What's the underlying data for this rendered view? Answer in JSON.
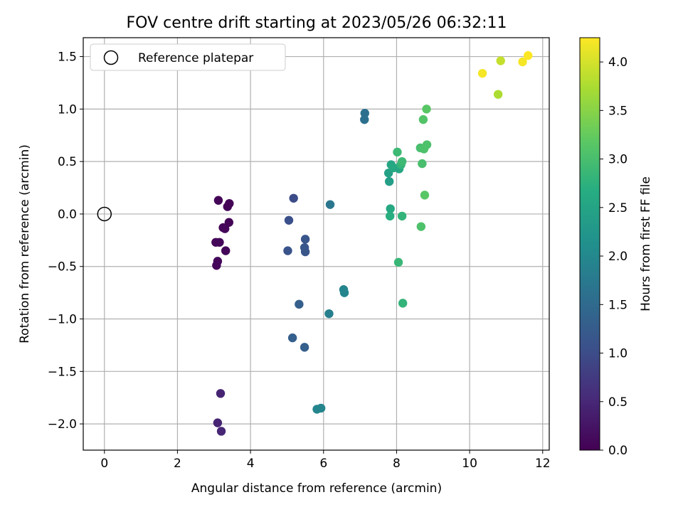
{
  "chart_data": {
    "type": "scatter",
    "title": "FOV centre drift starting at 2023/05/26 06:32:11",
    "xlabel": "Angular distance from reference (arcmin)",
    "ylabel": "Rotation from reference (arcmin)",
    "xlim": [
      -0.58,
      12.18
    ],
    "ylim": [
      -2.25,
      1.68
    ],
    "xticks": [
      0,
      2,
      4,
      6,
      8,
      10,
      12
    ],
    "yticks": [
      -2.0,
      -1.5,
      -1.0,
      -0.5,
      0.0,
      0.5,
      1.0,
      1.5
    ],
    "grid": true,
    "legend": {
      "placement": "top-left",
      "entries": [
        "Reference platepar"
      ]
    },
    "reference_point": {
      "x": 0,
      "y": 0,
      "marker": "open-circle",
      "label": "Reference platepar"
    },
    "colorbar": {
      "label": "Hours from first FF file",
      "range": [
        0.0,
        4.25
      ],
      "ticks": [
        0.0,
        0.5,
        1.0,
        1.5,
        2.0,
        2.5,
        3.0,
        3.5,
        4.0
      ],
      "colormap": "viridis"
    },
    "series": [
      {
        "points": [
          {
            "x": 3.12,
            "y": 0.13,
            "c": 0.05
          },
          {
            "x": 3.42,
            "y": 0.1,
            "c": 0.05
          },
          {
            "x": 3.37,
            "y": 0.07,
            "c": 0.05
          },
          {
            "x": 3.41,
            "y": -0.08,
            "c": 0.05
          },
          {
            "x": 3.25,
            "y": -0.13,
            "c": 0.05
          },
          {
            "x": 3.3,
            "y": -0.14,
            "c": 0.08
          },
          {
            "x": 3.15,
            "y": -0.27,
            "c": 0.08
          },
          {
            "x": 3.05,
            "y": -0.27,
            "c": 0.08
          },
          {
            "x": 3.32,
            "y": -0.35,
            "c": 0.08
          },
          {
            "x": 3.1,
            "y": -0.45,
            "c": 0.08
          },
          {
            "x": 3.07,
            "y": -0.49,
            "c": 0.08
          },
          {
            "x": 3.18,
            "y": -1.71,
            "c": 0.45
          },
          {
            "x": 3.1,
            "y": -1.99,
            "c": 0.45
          },
          {
            "x": 3.2,
            "y": -2.07,
            "c": 0.48
          },
          {
            "x": 5.18,
            "y": 0.15,
            "c": 1.0
          },
          {
            "x": 5.05,
            "y": -0.06,
            "c": 1.05
          },
          {
            "x": 5.5,
            "y": -0.24,
            "c": 1.15
          },
          {
            "x": 5.48,
            "y": -0.32,
            "c": 1.15
          },
          {
            "x": 5.02,
            "y": -0.35,
            "c": 1.1
          },
          {
            "x": 5.5,
            "y": -0.36,
            "c": 1.15
          },
          {
            "x": 5.33,
            "y": -0.86,
            "c": 1.3
          },
          {
            "x": 5.15,
            "y": -1.18,
            "c": 1.3
          },
          {
            "x": 5.48,
            "y": -1.27,
            "c": 1.3
          },
          {
            "x": 6.18,
            "y": 0.09,
            "c": 1.7
          },
          {
            "x": 6.15,
            "y": -0.95,
            "c": 1.85
          },
          {
            "x": 6.55,
            "y": -0.72,
            "c": 1.95
          },
          {
            "x": 6.57,
            "y": -0.75,
            "c": 1.95
          },
          {
            "x": 5.82,
            "y": -1.86,
            "c": 1.95
          },
          {
            "x": 5.93,
            "y": -1.85,
            "c": 1.95
          },
          {
            "x": 7.13,
            "y": 0.96,
            "c": 1.6
          },
          {
            "x": 7.12,
            "y": 0.9,
            "c": 1.6
          },
          {
            "x": 7.8,
            "y": 0.31,
            "c": 2.4
          },
          {
            "x": 7.78,
            "y": 0.39,
            "c": 2.45
          },
          {
            "x": 7.85,
            "y": 0.47,
            "c": 2.55
          },
          {
            "x": 7.92,
            "y": 0.44,
            "c": 2.6
          },
          {
            "x": 8.02,
            "y": 0.59,
            "c": 2.9
          },
          {
            "x": 8.07,
            "y": 0.43,
            "c": 2.55
          },
          {
            "x": 8.12,
            "y": 0.47,
            "c": 2.8
          },
          {
            "x": 8.15,
            "y": 0.5,
            "c": 2.9
          },
          {
            "x": 7.83,
            "y": 0.05,
            "c": 2.6
          },
          {
            "x": 7.82,
            "y": -0.02,
            "c": 2.7
          },
          {
            "x": 8.15,
            "y": -0.02,
            "c": 2.8
          },
          {
            "x": 8.05,
            "y": -0.46,
            "c": 2.85
          },
          {
            "x": 8.17,
            "y": -0.85,
            "c": 2.8
          },
          {
            "x": 8.65,
            "y": 0.63,
            "c": 3.0
          },
          {
            "x": 8.75,
            "y": 0.62,
            "c": 3.05
          },
          {
            "x": 8.83,
            "y": 0.66,
            "c": 3.05
          },
          {
            "x": 8.7,
            "y": 0.48,
            "c": 3.0
          },
          {
            "x": 8.73,
            "y": 0.9,
            "c": 3.1
          },
          {
            "x": 8.82,
            "y": 1.0,
            "c": 3.15
          },
          {
            "x": 8.77,
            "y": 0.18,
            "c": 3.15
          },
          {
            "x": 8.67,
            "y": -0.12,
            "c": 3.05
          },
          {
            "x": 10.35,
            "y": 1.34,
            "c": 4.2
          },
          {
            "x": 10.78,
            "y": 1.14,
            "c": 3.75
          },
          {
            "x": 10.85,
            "y": 1.46,
            "c": 3.9
          },
          {
            "x": 11.45,
            "y": 1.45,
            "c": 4.2
          },
          {
            "x": 11.6,
            "y": 1.51,
            "c": 4.25
          }
        ]
      }
    ]
  }
}
